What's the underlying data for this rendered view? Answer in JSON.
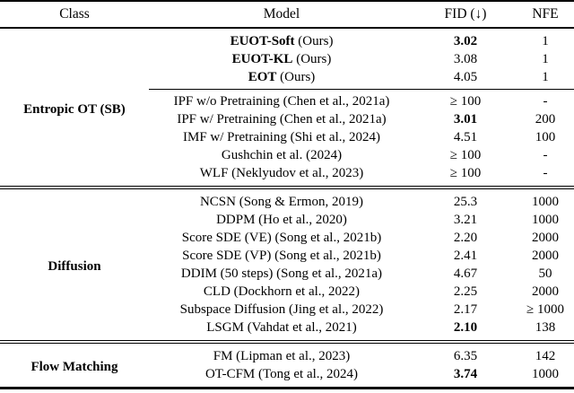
{
  "colors": {
    "text": "#000000",
    "background": "#ffffff",
    "rule": "#000000"
  },
  "table": {
    "headers": [
      "Class",
      "Model",
      "FID (↓)",
      "NFE"
    ],
    "sections": [
      {
        "class_label": "Entropic OT (SB)",
        "groups": [
          {
            "rows": [
              {
                "model_strong": "EUOT-Soft",
                "model_text": " (Ours)",
                "fid": "3.02",
                "fid_bold": true,
                "nfe": "1"
              },
              {
                "model_strong": "EUOT-KL",
                "model_text": " (Ours)",
                "fid": "3.08",
                "fid_bold": false,
                "nfe": "1"
              },
              {
                "model_strong": "EOT",
                "model_text": " (Ours)",
                "fid": "4.05",
                "fid_bold": false,
                "nfe": "1"
              }
            ]
          },
          {
            "rows": [
              {
                "model_strong": "",
                "model_text": "IPF w/o Pretraining (Chen et al., 2021a)",
                "fid": "≥ 100",
                "fid_bold": false,
                "nfe": "-"
              },
              {
                "model_strong": "",
                "model_text": "IPF w/ Pretraining (Chen et al., 2021a)",
                "fid": "3.01",
                "fid_bold": true,
                "nfe": "200"
              },
              {
                "model_strong": "",
                "model_text": "IMF w/ Pretraining (Shi et al., 2024)",
                "fid": "4.51",
                "fid_bold": false,
                "nfe": "100"
              },
              {
                "model_strong": "",
                "model_text": "Gushchin et al. (2024)",
                "fid": "≥ 100",
                "fid_bold": false,
                "nfe": "-"
              },
              {
                "model_strong": "",
                "model_text": "WLF (Neklyudov et al., 2023)",
                "fid": "≥ 100",
                "fid_bold": false,
                "nfe": "-"
              }
            ]
          }
        ]
      },
      {
        "class_label": "Diffusion",
        "groups": [
          {
            "rows": [
              {
                "model_strong": "",
                "model_text": "NCSN (Song & Ermon, 2019)",
                "fid": "25.3",
                "fid_bold": false,
                "nfe": "1000"
              },
              {
                "model_strong": "",
                "model_text": "DDPM (Ho et al., 2020)",
                "fid": "3.21",
                "fid_bold": false,
                "nfe": "1000"
              },
              {
                "model_strong": "",
                "model_text": "Score SDE (VE) (Song et al., 2021b)",
                "fid": "2.20",
                "fid_bold": false,
                "nfe": "2000"
              },
              {
                "model_strong": "",
                "model_text": "Score SDE (VP) (Song et al., 2021b)",
                "fid": "2.41",
                "fid_bold": false,
                "nfe": "2000"
              },
              {
                "model_strong": "",
                "model_text": "DDIM (50 steps) (Song et al., 2021a)",
                "fid": "4.67",
                "fid_bold": false,
                "nfe": "50"
              },
              {
                "model_strong": "",
                "model_text": "CLD (Dockhorn et al., 2022)",
                "fid": "2.25",
                "fid_bold": false,
                "nfe": "2000"
              },
              {
                "model_strong": "",
                "model_text": "Subspace Diffusion (Jing et al., 2022)",
                "fid": "2.17",
                "fid_bold": false,
                "nfe": "≥ 1000"
              },
              {
                "model_strong": "",
                "model_text": "LSGM (Vahdat et al., 2021)",
                "fid": "2.10",
                "fid_bold": true,
                "nfe": "138"
              }
            ]
          }
        ]
      },
      {
        "class_label": "Flow Matching",
        "groups": [
          {
            "rows": [
              {
                "model_strong": "",
                "model_text": "FM (Lipman et al., 2023)",
                "fid": "6.35",
                "fid_bold": false,
                "nfe": "142"
              },
              {
                "model_strong": "",
                "model_text": "OT-CFM (Tong et al., 2024)",
                "fid": "3.74",
                "fid_bold": true,
                "nfe": "1000"
              }
            ]
          }
        ]
      }
    ]
  }
}
